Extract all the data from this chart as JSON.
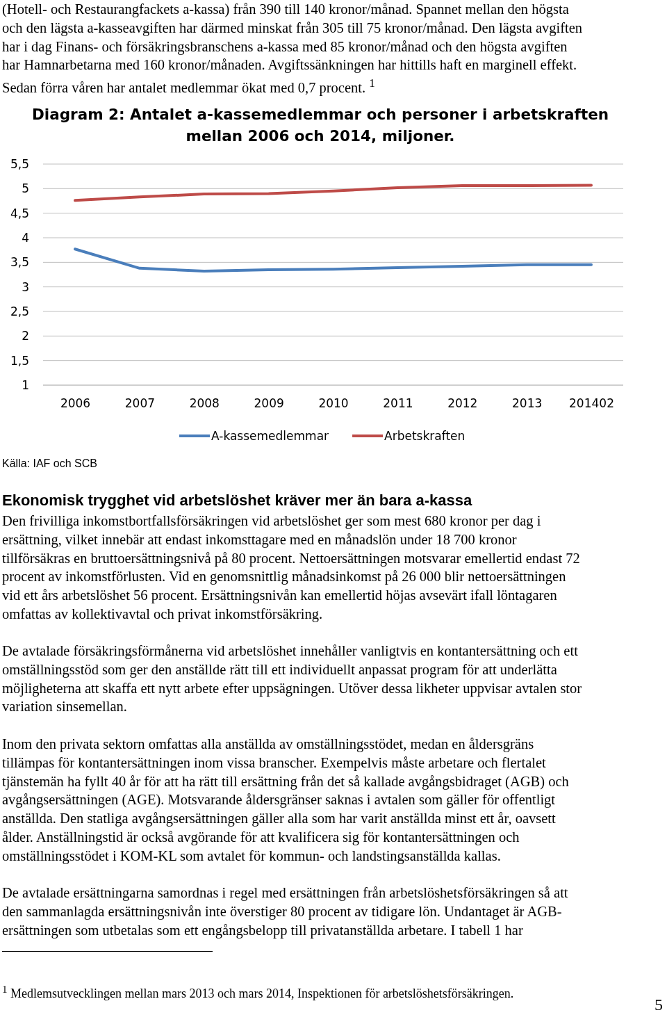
{
  "chart_data": {
    "type": "line",
    "title": "Diagram 2: Antalet a-kassemedlemmar och personer i arbetskraften\nmellan 2006 och 2014, miljoner.",
    "categories": [
      "2006",
      "2007",
      "2008",
      "2009",
      "2010",
      "2011",
      "2012",
      "2013",
      "201402"
    ],
    "series": [
      {
        "name": "A-kassemedlemmar",
        "color": "#4a7ebb",
        "values": [
          3.77,
          3.38,
          3.32,
          3.35,
          3.36,
          3.39,
          3.42,
          3.45,
          3.45
        ]
      },
      {
        "name": "Arbetskraften",
        "color": "#be4b48",
        "values": [
          4.76,
          4.83,
          4.89,
          4.9,
          4.95,
          5.02,
          5.06,
          5.06,
          5.07
        ]
      }
    ],
    "ylim": [
      1,
      5.5
    ],
    "yticks": [
      1,
      {
        "value": 1.5,
        "label": "1,5"
      },
      2,
      {
        "value": 2.5,
        "label": "2,5"
      },
      3,
      {
        "value": 3.5,
        "label": "3,5"
      },
      4,
      {
        "value": 4.5,
        "label": "4,5"
      },
      5,
      {
        "value": 5.5,
        "label": "5,5"
      }
    ],
    "grid": "y",
    "legend": "bottom",
    "marker": "none",
    "line_style": "solid",
    "annotations": [
      "(Hotell- och Restaurangfackets a-kassa) från 390 till 140 kronor/månad. Spannet mellan den högsta\noch den lägsta a-kasseavgiften har därmed minskat från 305 till 75 kronor/månad. Den lägsta avgiften\nhar i dag Finans- och försäkringsbranschens a-kassa med 85  kronor/månad och den högsta avgiften\nhar Hamnarbetarna med 160 kronor/månaden. Avgiftssänkningen har hittills haft en marginell effekt.\nSedan förra våren har antalet medlemmar ökat med 0,7 procent. $^{1}$",
      "Källa: IAF och SCB",
      "Ekonomisk trygghet vid arbetslöshet kräver mer än bara a-kassa",
      "Den frivilliga inkomstbortfallsförsäkringen vid arbetslöshet ger som mest 680 kronor per dag i\nersättning, vilket innebär att endast inkomsttagare med en månadslön under 18 700 kronor\ntillförsäkras en bruttoersättningsnivå på 80 procent. Nettoersättningen motsvarar emellertid endast 72\nprocent av inkomstförlusten. Vid en genomsnittlig månadsinkomst på 26 000 blir nettoersättningen\nvid ett års arbetslöshet 56 procent. Ersättningsnivån kan emellertid höjas avsevärt ifall löntagaren\nomfattas av kollektivavtal och privat inkomstförsäkring.",
      "De avtalade försäkringsförmånerna vid arbetslöshet innehåller vanligtvis en kontantersättning och ett\nomställningsstöd som ger den anställde rätt till ett individuellt anpassat program för att underlätta\nmöjligheterna att skaffa ett nytt arbete efter uppsägningen. Utöver dessa likheter uppvisar avtalen stor\nvariation sinsemellan.",
      "Inom den privata sektorn omfattas alla anställda av omställningsstödet, medan en åldersgräns\ntillämpas för kontantersättningen inom vissa branscher. Exempelvis måste arbetare och flertalet\ntjänstemän ha fyllt 40 år för att ha rätt till ersättning från det så kallade avgångsbidraget (AGB) och\navgångsersättningen (AGE). Motsvarande åldersgränser saknas i avtalen som gäller för offentligt\nanställda. Den statliga avgångsersättningen gäller alla som har varit anställda minst ett år, oavsett\nålder. Anställningstid är också avgörande för att kvalificera sig för kontantersättningen och\nomställningsstödet i KOM-KL som avtalet för kommun- och landstingsanställda kallas.",
      "De avtalade ersättningarna samordnas i regel med ersättningen från arbetslöshetsförsäkringen så att\nden sammanlagda ersättningsnivån inte överstiger 80 procent av tidigare lön. Undantaget är AGB-\nersättningen som utbetalas som ett engångsbelopp till privatanställda arbetare. I tabell 1 har",
      "$^{1}$ Medlemsutvecklingen mellan mars 2013 och mars 2014, Inspektionen för arbetslöshetsförsäkringen.",
      "5"
    ]
  }
}
